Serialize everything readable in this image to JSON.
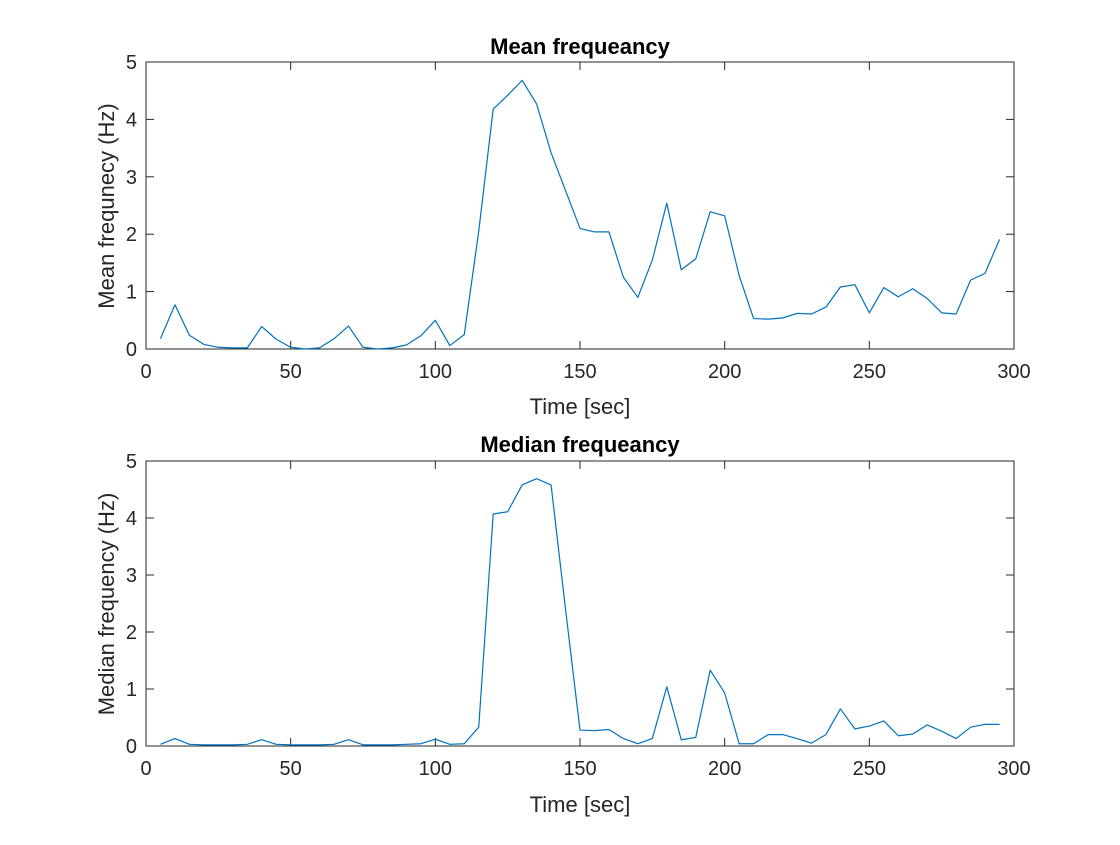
{
  "colors": {
    "line": "#0072BD",
    "axes": "#262626",
    "background": "#ffffff"
  },
  "chart_data": [
    {
      "type": "line",
      "title": "Mean frequeancy",
      "xlabel": "Time [sec]",
      "ylabel": "Mean frequnecy (Hz)",
      "xlim": [
        0,
        300
      ],
      "ylim": [
        0,
        5
      ],
      "xticks": [
        0,
        50,
        100,
        150,
        200,
        250,
        300
      ],
      "yticks": [
        0,
        1,
        2,
        3,
        4,
        5
      ],
      "grid": false,
      "series": [
        {
          "x": [
            5,
            10,
            15,
            20,
            25,
            30,
            35,
            40,
            45,
            50,
            55,
            60,
            65,
            70,
            75,
            80,
            85,
            90,
            95,
            100,
            105,
            110,
            115,
            120,
            125,
            130,
            135,
            140,
            145,
            150,
            155,
            160,
            165,
            170,
            175,
            180,
            185,
            190,
            195,
            200,
            205,
            210,
            215,
            220,
            225,
            230,
            235,
            240,
            245,
            250,
            255,
            260,
            265,
            270,
            275,
            280,
            285,
            290,
            295
          ],
          "y": [
            0.18,
            0.77,
            0.24,
            0.08,
            0.03,
            0.02,
            0.02,
            0.39,
            0.17,
            0.03,
            0.0,
            0.02,
            0.18,
            0.4,
            0.03,
            0.0,
            0.02,
            0.07,
            0.23,
            0.5,
            0.06,
            0.25,
            2.05,
            4.18,
            4.42,
            4.68,
            4.27,
            3.42,
            2.76,
            2.1,
            2.04,
            2.04,
            1.25,
            0.9,
            1.55,
            2.54,
            1.38,
            1.57,
            2.39,
            2.32,
            1.28,
            0.53,
            0.52,
            0.54,
            0.62,
            0.61,
            0.73,
            1.08,
            1.12,
            0.63,
            1.07,
            0.91,
            1.05,
            0.88,
            0.63,
            0.61,
            1.2,
            1.32,
            1.91
          ]
        }
      ]
    },
    {
      "type": "line",
      "title": "Median frequeancy",
      "xlabel": "Time [sec]",
      "ylabel": "Median frequency (Hz)",
      "xlim": [
        0,
        300
      ],
      "ylim": [
        0,
        5
      ],
      "xticks": [
        0,
        50,
        100,
        150,
        200,
        250,
        300
      ],
      "yticks": [
        0,
        1,
        2,
        3,
        4,
        5
      ],
      "grid": false,
      "series": [
        {
          "x": [
            5,
            10,
            15,
            20,
            25,
            30,
            35,
            40,
            45,
            50,
            55,
            60,
            65,
            70,
            75,
            80,
            85,
            90,
            95,
            100,
            105,
            110,
            115,
            120,
            125,
            130,
            135,
            140,
            145,
            150,
            155,
            160,
            165,
            170,
            175,
            180,
            185,
            190,
            195,
            200,
            205,
            210,
            215,
            220,
            225,
            230,
            235,
            240,
            245,
            250,
            255,
            260,
            265,
            270,
            275,
            280,
            285,
            290,
            295
          ],
          "y": [
            0.03,
            0.13,
            0.03,
            0.02,
            0.02,
            0.02,
            0.03,
            0.11,
            0.03,
            0.02,
            0.02,
            0.02,
            0.03,
            0.11,
            0.02,
            0.02,
            0.02,
            0.03,
            0.04,
            0.12,
            0.03,
            0.04,
            0.33,
            4.07,
            4.11,
            4.58,
            4.69,
            4.58,
            2.4,
            0.28,
            0.27,
            0.29,
            0.13,
            0.04,
            0.13,
            1.04,
            0.11,
            0.15,
            1.33,
            0.93,
            0.04,
            0.04,
            0.2,
            0.2,
            0.13,
            0.05,
            0.2,
            0.65,
            0.3,
            0.35,
            0.44,
            0.18,
            0.21,
            0.37,
            0.26,
            0.13,
            0.33,
            0.38,
            0.38
          ]
        }
      ]
    }
  ]
}
